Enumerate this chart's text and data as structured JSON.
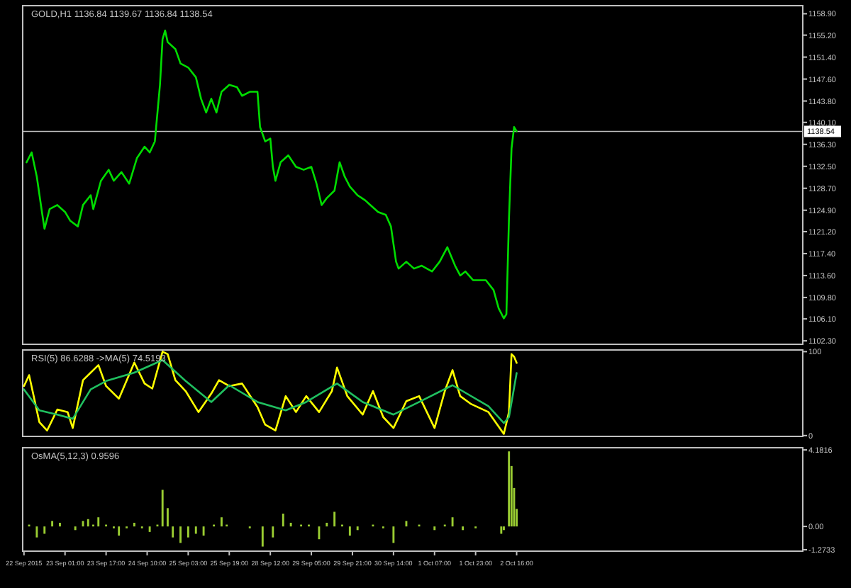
{
  "chart_data": [
    {
      "type": "line",
      "title": "GOLD,H1 1136.84 1139.67 1136.84 1138.54",
      "ylim": [
        1101.7,
        1160.3
      ],
      "tick_labels": "y",
      "categories": [
        null,
        null,
        null,
        null,
        null,
        null,
        null,
        null,
        null,
        null,
        null,
        null,
        null,
        null,
        null,
        null,
        null,
        null,
        null,
        null,
        null,
        null,
        null,
        null,
        null,
        null,
        null,
        null,
        null,
        null,
        null,
        null,
        null,
        null,
        null,
        null,
        null,
        null,
        null,
        null,
        null,
        null,
        null,
        null,
        null,
        null,
        null,
        null,
        null,
        null,
        null,
        null,
        null,
        null,
        null,
        null,
        null,
        null,
        null,
        null,
        null,
        null,
        null,
        null,
        null,
        null,
        null,
        null,
        null,
        null,
        null,
        null,
        null,
        null,
        null,
        null,
        null,
        null,
        null,
        null,
        null,
        null,
        null,
        null,
        null,
        null,
        null,
        null,
        null,
        null,
        null,
        null,
        null,
        null,
        null,
        null,
        null,
        null,
        null,
        null,
        null,
        null,
        null,
        null,
        null,
        null,
        null,
        null,
        null,
        null,
        null,
        null,
        null,
        null,
        null,
        null,
        null,
        null,
        null,
        null,
        null,
        null,
        null,
        null,
        null,
        null,
        null,
        null,
        null,
        null,
        null,
        null,
        null,
        null,
        null,
        null,
        null,
        null,
        null,
        null,
        null,
        null,
        null,
        null,
        null,
        null,
        null,
        null,
        null,
        null,
        null,
        null,
        null,
        null,
        null,
        null,
        null,
        null,
        null,
        null,
        null,
        null,
        null,
        null,
        null,
        null,
        null,
        null,
        null,
        null,
        null,
        null,
        null,
        null,
        null,
        null,
        null,
        null,
        null,
        null,
        null,
        null,
        null,
        null,
        null,
        null,
        null,
        null,
        null,
        null,
        null,
        null,
        null,
        null,
        null,
        null,
        null,
        null,
        null,
        null,
        null,
        null,
        null,
        null,
        null,
        null,
        null,
        null,
        null,
        null,
        null,
        null,
        null,
        null,
        null,
        null,
        null,
        null,
        null,
        null,
        null,
        null,
        null,
        null,
        null,
        null,
        null,
        null,
        null,
        null,
        null,
        null,
        null,
        null,
        null,
        null,
        null,
        null,
        null,
        null,
        null,
        null,
        null,
        null,
        null,
        null,
        null,
        null,
        null,
        null,
        null,
        null,
        null,
        null,
        null,
        null,
        null,
        null,
        null,
        null,
        null,
        null,
        null,
        null,
        null,
        null,
        null,
        null,
        null,
        null,
        null,
        null,
        null,
        null,
        null,
        null,
        null,
        null,
        null,
        null,
        null,
        null,
        null,
        null,
        null,
        null,
        null,
        null,
        null,
        null,
        null,
        null,
        null,
        null,
        null,
        null,
        null,
        null,
        null,
        null,
        null,
        null,
        null,
        null
      ],
      "yticks": [
        {
          "value": 1158.9,
          "label": "1158.90"
        },
        {
          "value": 1155.2,
          "label": "1155.20"
        },
        {
          "value": 1151.4,
          "label": "1151.40"
        },
        {
          "value": 1147.6,
          "label": "1147.60"
        },
        {
          "value": 1143.8,
          "label": "1143.80"
        },
        {
          "value": 1140.1,
          "label": "1140.10"
        },
        {
          "value": 1136.3,
          "label": "1136.30"
        },
        {
          "value": 1132.5,
          "label": "1132.50"
        },
        {
          "value": 1128.7,
          "label": "1128.70"
        },
        {
          "value": 1124.9,
          "label": "1124.90"
        },
        {
          "value": 1121.2,
          "label": "1121.20"
        },
        {
          "value": 1117.4,
          "label": "1117.40"
        },
        {
          "value": 1113.6,
          "label": "1113.60"
        },
        {
          "value": 1109.8,
          "label": "1109.80"
        },
        {
          "value": 1106.1,
          "label": "1106.10"
        },
        {
          "value": 1102.3,
          "label": "1102.30"
        }
      ],
      "ref_lines": [
        {
          "axis": "y",
          "value": 1138.54,
          "label": "1138.54",
          "color": "#c0c0c0"
        }
      ],
      "series": [
        {
          "color": "#00dd00",
          "values": [
            null,
            1133.2,
            null,
            1134.9,
            null,
            1130.7,
            null,
            1124.6,
            1121.7,
            null,
            1125.1,
            null,
            null,
            1125.8,
            null,
            null,
            1124.6,
            null,
            1123.1,
            null,
            null,
            1122.1,
            null,
            1125.8,
            null,
            null,
            1127.5,
            1125.1,
            null,
            null,
            1130.0,
            null,
            null,
            1131.9,
            null,
            1130.0,
            null,
            null,
            1131.5,
            null,
            null,
            1129.5,
            null,
            null,
            1133.9,
            null,
            null,
            1135.9,
            null,
            1134.9,
            null,
            1136.8,
            null,
            1146.6,
            1154.5,
            1156.0,
            1154.0,
            null,
            null,
            1152.8,
            null,
            1150.3,
            null,
            null,
            1149.6,
            null,
            null,
            1147.9,
            null,
            1144.2,
            null,
            1141.8,
            null,
            1144.2,
            null,
            1141.8,
            null,
            1145.4,
            null,
            null,
            1146.6,
            null,
            null,
            1146.2,
            null,
            1144.7,
            null,
            null,
            1145.4,
            null,
            null,
            1145.4,
            1139.3,
            null,
            1136.8,
            null,
            1137.3,
            1132.4,
            1130.0,
            null,
            1133.2,
            null,
            null,
            1134.4,
            null,
            null,
            1132.4,
            null,
            null,
            1131.9,
            null,
            null,
            1132.4,
            null,
            1129.5,
            null,
            1125.8,
            null,
            1127.0,
            null,
            null,
            1128.3,
            null,
            1133.2,
            null,
            1130.7,
            null,
            1129.0,
            null,
            null,
            1127.5,
            null,
            null,
            1126.6,
            null,
            1125.8,
            null,
            null,
            1124.6,
            null,
            null,
            1124.1,
            null,
            1122.1,
            null,
            1116.0,
            1114.8,
            null,
            null,
            1116.0,
            null,
            null,
            1114.8,
            null,
            null,
            1115.3,
            null,
            null,
            null,
            1114.3,
            null,
            null,
            1116.0,
            null,
            null,
            1118.5,
            null,
            null,
            1115.3,
            null,
            1113.6,
            null,
            1114.3,
            null,
            null,
            1112.8,
            null,
            null,
            null,
            null,
            1112.8,
            null,
            null,
            1111.1,
            null,
            1107.9,
            null,
            1106.2,
            1106.9,
            1123.4,
            1135.6,
            1139.3,
            1138.54,
            null,
            null,
            null,
            null,
            null,
            null,
            null,
            null,
            null,
            null,
            null,
            null,
            null,
            null,
            null,
            null,
            null,
            null,
            null,
            null,
            null,
            null,
            null,
            null,
            null,
            null,
            null,
            null,
            null,
            null,
            null,
            null,
            null,
            null,
            null,
            null,
            null,
            null,
            null,
            null,
            null,
            null,
            null,
            null,
            null,
            null,
            null,
            null,
            null,
            null,
            null,
            null,
            null,
            null,
            null,
            null,
            null,
            null,
            null,
            null,
            null,
            null,
            null,
            null,
            null,
            null,
            null,
            null,
            null,
            null,
            null,
            null,
            null,
            null,
            null,
            null,
            null,
            null,
            null,
            null,
            null,
            null,
            null,
            null,
            null,
            null,
            null,
            null,
            null,
            null,
            null,
            null,
            null,
            null,
            null,
            null,
            null,
            null,
            null,
            null,
            null,
            null,
            null,
            null,
            null,
            null,
            null,
            null,
            null,
            null,
            null
          ]
        }
      ]
    },
    {
      "type": "line",
      "title": "RSI(5) 86.6288 ->MA(5) 74.5193",
      "ylim": [
        -1,
        102
      ],
      "tick_labels": "y",
      "categories": [
        null,
        null,
        null,
        null,
        null,
        null,
        null,
        null,
        null,
        null,
        null,
        null,
        null,
        null,
        null,
        null,
        null,
        null,
        null,
        null,
        null,
        null,
        null,
        null,
        null,
        null,
        null,
        null,
        null,
        null,
        null,
        null,
        null,
        null,
        null,
        null,
        null,
        null,
        null,
        null,
        null,
        null,
        null,
        null,
        null,
        null,
        null,
        null,
        null,
        null,
        null,
        null,
        null,
        null,
        null,
        null,
        null,
        null,
        null,
        null,
        null,
        null,
        null,
        null,
        null,
        null,
        null,
        null,
        null,
        null,
        null,
        null,
        null,
        null,
        null,
        null,
        null,
        null,
        null,
        null,
        null,
        null,
        null,
        null,
        null,
        null,
        null,
        null,
        null,
        null,
        null,
        null,
        null,
        null,
        null,
        null,
        null,
        null,
        null,
        null,
        null,
        null,
        null,
        null,
        null,
        null,
        null,
        null,
        null,
        null,
        null,
        null,
        null,
        null,
        null,
        null,
        null,
        null,
        null,
        null,
        null,
        null,
        null,
        null,
        null,
        null,
        null,
        null,
        null,
        null,
        null,
        null,
        null,
        null,
        null,
        null,
        null,
        null,
        null,
        null,
        null,
        null,
        null,
        null,
        null,
        null,
        null,
        null,
        null,
        null,
        null,
        null,
        null,
        null,
        null,
        null,
        null,
        null,
        null,
        null,
        null,
        null,
        null,
        null,
        null,
        null,
        null,
        null,
        null,
        null,
        null,
        null,
        null,
        null,
        null,
        null,
        null,
        null,
        null,
        null,
        null,
        null,
        null,
        null,
        null,
        null,
        null,
        null,
        null,
        null,
        null,
        null,
        null,
        null,
        null,
        null,
        null,
        null,
        null,
        null,
        null,
        null,
        null,
        null,
        null,
        null,
        null,
        null,
        null,
        null,
        null,
        null,
        null,
        null,
        null,
        null,
        null,
        null,
        null,
        null,
        null,
        null,
        null,
        null,
        null,
        null,
        null,
        null,
        null,
        null,
        null,
        null,
        null,
        null,
        null,
        null,
        null,
        null,
        null,
        null,
        null,
        null,
        null,
        null,
        null,
        null,
        null,
        null,
        null,
        null,
        null,
        null,
        null,
        null,
        null,
        null,
        null,
        null,
        null,
        null,
        null,
        null,
        null,
        null,
        null,
        null,
        null,
        null,
        null,
        null,
        null,
        null,
        null,
        null,
        null,
        null,
        null,
        null,
        null,
        null,
        null,
        null,
        null,
        null,
        null,
        null,
        null,
        null,
        null,
        null,
        null,
        null,
        null,
        null,
        null,
        null,
        null,
        null,
        null,
        null,
        null,
        null,
        null,
        null
      ],
      "yticks": [
        0,
        100
      ],
      "series": [
        {
          "color": "#ffff00",
          "values": [
            59,
            null,
            72,
            null,
            null,
            null,
            16,
            null,
            null,
            6,
            null,
            null,
            null,
            31,
            null,
            null,
            null,
            28,
            null,
            9,
            null,
            null,
            null,
            66,
            null,
            null,
            75,
            null,
            null,
            84,
            null,
            null,
            59,
            null,
            null,
            null,
            null,
            44,
            null,
            null,
            null,
            null,
            null,
            87,
            null,
            null,
            null,
            62,
            null,
            null,
            56,
            null,
            null,
            null,
            100,
            null,
            97,
            null,
            null,
            66,
            null,
            null,
            null,
            53,
            null,
            null,
            null,
            null,
            28,
            null,
            null,
            null,
            null,
            50,
            null,
            null,
            66,
            null,
            null,
            null,
            59,
            null,
            null,
            null,
            null,
            62,
            null,
            null,
            null,
            null,
            null,
            34,
            null,
            null,
            13,
            null,
            null,
            null,
            6,
            null,
            null,
            null,
            47,
            null,
            null,
            null,
            28,
            null,
            null,
            null,
            47,
            null,
            null,
            null,
            null,
            28,
            null,
            null,
            null,
            null,
            53,
            null,
            81,
            null,
            null,
            null,
            47,
            null,
            null,
            null,
            null,
            null,
            25,
            null,
            null,
            null,
            53,
            null,
            null,
            null,
            22,
            null,
            null,
            null,
            9,
            null,
            null,
            null,
            null,
            41,
            null,
            null,
            null,
            null,
            47,
            null,
            null,
            null,
            null,
            null,
            9,
            null,
            null,
            null,
            53,
            null,
            null,
            78,
            null,
            null,
            47,
            null,
            null,
            null,
            38,
            null,
            null,
            null,
            null,
            null,
            null,
            28,
            null,
            null,
            null,
            null,
            null,
            2,
            null,
            28,
            97,
            94,
            86.6,
            null,
            null,
            null,
            null,
            null,
            null,
            null,
            null,
            null,
            null,
            null,
            null,
            null,
            null,
            null,
            null,
            null,
            null,
            null,
            null,
            null,
            null,
            null,
            null,
            null,
            null,
            null,
            null,
            null,
            null,
            null,
            null,
            null,
            null,
            null,
            null,
            null,
            null,
            null,
            null,
            null,
            null,
            null,
            null,
            null,
            null,
            null,
            null,
            null,
            null,
            null,
            null,
            null,
            null,
            null,
            null,
            null,
            null,
            null,
            null,
            null,
            null,
            null,
            null,
            null,
            null,
            null,
            null,
            null,
            null,
            null,
            null,
            null,
            null,
            null,
            null,
            null,
            null,
            null,
            null,
            null,
            null,
            null,
            null,
            null,
            null,
            null,
            null,
            null,
            null,
            null,
            null,
            null,
            null,
            null,
            null,
            null,
            null,
            null,
            null,
            null,
            null,
            null,
            null,
            null,
            null,
            null,
            null,
            null,
            null,
            null
          ]
        },
        {
          "color": "#20c060",
          "values": [
            55,
            null,
            null,
            null,
            null,
            null,
            30,
            null,
            null,
            null,
            null,
            null,
            null,
            25,
            null,
            null,
            null,
            null,
            null,
            20,
            null,
            null,
            null,
            null,
            null,
            null,
            55,
            null,
            null,
            null,
            null,
            null,
            65,
            null,
            null,
            null,
            null,
            null,
            null,
            null,
            null,
            null,
            null,
            75,
            null,
            null,
            null,
            null,
            null,
            null,
            null,
            null,
            null,
            null,
            90,
            null,
            null,
            null,
            null,
            null,
            null,
            null,
            null,
            65,
            null,
            null,
            null,
            null,
            null,
            null,
            null,
            null,
            null,
            40,
            null,
            null,
            null,
            null,
            null,
            null,
            60,
            null,
            null,
            null,
            null,
            null,
            null,
            null,
            null,
            null,
            null,
            40,
            null,
            null,
            null,
            null,
            null,
            null,
            null,
            null,
            null,
            null,
            30,
            null,
            null,
            null,
            null,
            null,
            null,
            null,
            40,
            null,
            null,
            null,
            null,
            null,
            null,
            null,
            null,
            null,
            null,
            null,
            62,
            null,
            null,
            null,
            null,
            null,
            null,
            null,
            null,
            null,
            40,
            null,
            null,
            null,
            null,
            null,
            null,
            null,
            null,
            null,
            null,
            null,
            25,
            null,
            null,
            null,
            null,
            null,
            null,
            null,
            null,
            null,
            40,
            null,
            null,
            null,
            null,
            null,
            null,
            null,
            null,
            null,
            null,
            null,
            null,
            60,
            null,
            null,
            null,
            null,
            null,
            null,
            null,
            null,
            null,
            null,
            null,
            null,
            null,
            35,
            null,
            null,
            null,
            null,
            null,
            15,
            null,
            22,
            null,
            null,
            74.5,
            null,
            null,
            null,
            null,
            null,
            null,
            null,
            null,
            null,
            null,
            null,
            null,
            null,
            null,
            null,
            null,
            null,
            null,
            null,
            null,
            null,
            null,
            null,
            null,
            null,
            null,
            null,
            null,
            null,
            null,
            null,
            null,
            null,
            null,
            null,
            null,
            null,
            null,
            null,
            null,
            null,
            null,
            null,
            null,
            null,
            null,
            null,
            null,
            null,
            null,
            null,
            null,
            null,
            null,
            null,
            null,
            null,
            null,
            null,
            null,
            null,
            null,
            null,
            null,
            null,
            null,
            null,
            null,
            null,
            null,
            null,
            null,
            null,
            null,
            null,
            null,
            null,
            null,
            null,
            null,
            null,
            null,
            null,
            null,
            null,
            null,
            null,
            null,
            null,
            null,
            null,
            null,
            null,
            null,
            null,
            null,
            null,
            null,
            null,
            null,
            null,
            null,
            null,
            null,
            null,
            null,
            null,
            null,
            null,
            null,
            null
          ]
        }
      ]
    },
    {
      "type": "bar",
      "title": "OsMA(5,12,3) 0.9596",
      "ylim": [
        -1.35,
        4.3
      ],
      "categories": [
        "22 Sep 2015",
        null,
        null,
        null,
        null,
        null,
        null,
        null,
        null,
        null,
        null,
        null,
        null,
        null,
        null,
        null,
        "23 Sep 01:00",
        null,
        null,
        null,
        null,
        null,
        null,
        null,
        null,
        null,
        null,
        null,
        null,
        null,
        null,
        null,
        "23 Sep 17:00",
        null,
        null,
        null,
        null,
        null,
        null,
        null,
        null,
        null,
        null,
        null,
        null,
        null,
        null,
        null,
        "24 Sep 10:00",
        null,
        null,
        null,
        null,
        null,
        null,
        null,
        null,
        null,
        null,
        null,
        null,
        null,
        null,
        null,
        "25 Sep 03:00",
        null,
        null,
        null,
        null,
        null,
        null,
        null,
        null,
        null,
        null,
        null,
        null,
        null,
        null,
        null,
        "25 Sep 19:00",
        null,
        null,
        null,
        null,
        null,
        null,
        null,
        null,
        null,
        null,
        null,
        null,
        null,
        null,
        null,
        "28 Sep 12:00",
        null,
        null,
        null,
        null,
        null,
        null,
        null,
        null,
        null,
        null,
        null,
        null,
        null,
        null,
        null,
        "29 Sep 05:00",
        null,
        null,
        null,
        null,
        null,
        null,
        null,
        null,
        null,
        null,
        null,
        null,
        null,
        null,
        null,
        "29 Sep 21:00",
        null,
        null,
        null,
        null,
        null,
        null,
        null,
        null,
        null,
        null,
        null,
        null,
        null,
        null,
        null,
        "30 Sep 14:00",
        null,
        null,
        null,
        null,
        null,
        null,
        null,
        null,
        null,
        null,
        null,
        null,
        null,
        null,
        null,
        "1 Oct 07:00",
        null,
        null,
        null,
        null,
        null,
        null,
        null,
        null,
        null,
        null,
        null,
        null,
        null,
        null,
        null,
        "1 Oct 23:00",
        null,
        null,
        null,
        null,
        null,
        null,
        null,
        null,
        null,
        null,
        null,
        null,
        null,
        null,
        null,
        "2 Oct 16:00",
        null,
        null,
        null,
        null,
        null,
        null,
        null,
        null,
        null,
        null,
        null,
        null,
        null,
        null,
        null,
        null,
        null,
        null,
        null,
        null,
        null,
        null,
        null,
        null,
        null,
        null,
        null,
        null,
        null,
        null,
        null,
        null,
        null,
        null,
        null,
        null,
        null,
        null,
        null,
        null,
        null,
        null,
        null,
        null,
        null,
        null,
        null,
        null,
        null,
        null,
        null,
        null,
        null,
        null,
        null,
        null,
        null,
        null,
        null,
        null,
        null,
        null,
        null,
        null,
        null,
        null,
        null,
        null,
        null,
        null,
        null,
        null,
        null,
        null,
        null,
        null,
        null,
        null,
        null,
        null,
        null,
        null,
        null,
        null,
        null,
        null,
        null,
        null,
        null,
        null,
        null,
        null,
        null,
        null,
        null,
        null,
        null,
        null,
        null,
        null,
        null,
        null,
        null,
        null,
        null,
        null,
        null,
        null,
        null,
        null,
        null
      ],
      "yticks": [
        {
          "value": 4.1816,
          "label": "4.1816"
        },
        {
          "value": 0,
          "label": "0.00"
        },
        {
          "value": -1.2733,
          "label": "-1.2733"
        }
      ],
      "series": [
        {
          "color": "#9acd32",
          "values": [
            null,
            null,
            0.1,
            null,
            null,
            -0.6,
            null,
            null,
            -0.4,
            null,
            null,
            0.3,
            null,
            null,
            0.2,
            null,
            null,
            0,
            null,
            null,
            -0.2,
            null,
            null,
            0.3,
            null,
            0.4,
            null,
            0.1,
            null,
            0.5,
            null,
            null,
            0.1,
            null,
            null,
            -0.1,
            null,
            -0.5,
            null,
            null,
            -0.1,
            null,
            null,
            0.2,
            null,
            null,
            -0.1,
            null,
            null,
            -0.3,
            null,
            null,
            0.1,
            null,
            2.0,
            null,
            1.0,
            null,
            -0.6,
            null,
            null,
            -0.9,
            null,
            null,
            -0.6,
            null,
            null,
            -0.4,
            null,
            null,
            -0.5,
            null,
            null,
            null,
            0.1,
            null,
            null,
            0.5,
            null,
            0.1,
            null,
            null,
            null,
            0,
            null,
            null,
            null,
            null,
            -0.1,
            null,
            null,
            null,
            null,
            -1.1,
            null,
            null,
            null,
            -0.6,
            null,
            null,
            null,
            0.7,
            null,
            null,
            0.2,
            null,
            null,
            null,
            0.1,
            null,
            null,
            0.1,
            null,
            null,
            null,
            -0.7,
            null,
            null,
            0.2,
            null,
            null,
            0.8,
            null,
            null,
            0.1,
            null,
            null,
            -0.5,
            null,
            null,
            -0.2,
            null,
            null,
            null,
            null,
            null,
            0.1,
            null,
            null,
            null,
            -0.1,
            null,
            null,
            null,
            -0.9,
            null,
            null,
            null,
            null,
            0.3,
            null,
            null,
            null,
            null,
            0.1,
            null,
            null,
            null,
            null,
            null,
            -0.2,
            null,
            null,
            null,
            0.1,
            null,
            null,
            0.5,
            null,
            null,
            null,
            -0.2,
            null,
            null,
            null,
            null,
            -0.1,
            null,
            null,
            null,
            null,
            null,
            0,
            null,
            null,
            null,
            -0.4,
            -0.2,
            null,
            4.1,
            3.3,
            2.1,
            0.96,
            null,
            null,
            null,
            null,
            null,
            null,
            null,
            null,
            null,
            null,
            null,
            null,
            null,
            null,
            null,
            null,
            null,
            null,
            null,
            null,
            null,
            null,
            null,
            null,
            null,
            null,
            null,
            null,
            null,
            null,
            null,
            null,
            null,
            null,
            null,
            null,
            null,
            null,
            null,
            null,
            null,
            null,
            null,
            null,
            null,
            null,
            null,
            null,
            null,
            null,
            null,
            null,
            null,
            null,
            null,
            null,
            null,
            null,
            null,
            null,
            null,
            null,
            null,
            null,
            null,
            null,
            null,
            null,
            null,
            null,
            null,
            null,
            null,
            null,
            null,
            null,
            null,
            null,
            null,
            null,
            null,
            null,
            null,
            null,
            null,
            null,
            null,
            null,
            null,
            null,
            null,
            null,
            null,
            null,
            null,
            null,
            null,
            null,
            null,
            null,
            null,
            null,
            null,
            null,
            null,
            null,
            null,
            null,
            null,
            null,
            null
          ]
        }
      ]
    }
  ]
}
